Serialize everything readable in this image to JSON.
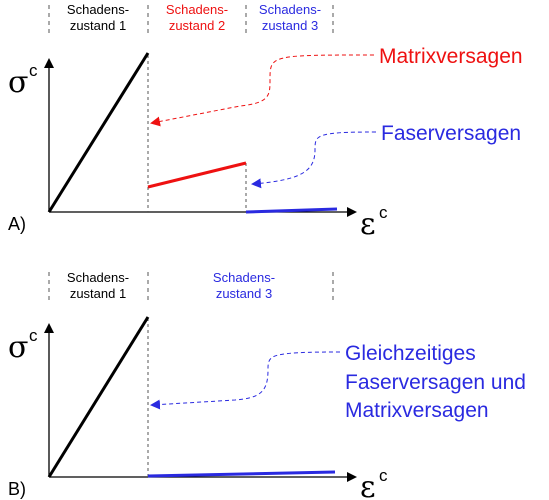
{
  "colors": {
    "black": "#000000",
    "red": "#ee1111",
    "blue": "#2a2ae0",
    "grey": "#555555"
  },
  "diagram_a": {
    "label": "A)",
    "y_axis": "σ",
    "y_sup": "c",
    "x_axis": "ε",
    "x_sup": "c",
    "zones": [
      {
        "line1": "Schadens-",
        "line2": "zustand 1",
        "color": "#000000"
      },
      {
        "line1": "Schadens-",
        "line2": "zustand 2",
        "color": "#ee1111"
      },
      {
        "line1": "Schadens-",
        "line2": "zustand 3",
        "color": "#2a2ae0"
      }
    ],
    "annotations": [
      {
        "text": "Matrixversagen",
        "color": "#ee1111"
      },
      {
        "text": "Faserversagen",
        "color": "#2a2ae0"
      }
    ]
  },
  "diagram_b": {
    "label": "B)",
    "y_axis": "σ",
    "y_sup": "c",
    "x_axis": "ε",
    "x_sup": "c",
    "zones": [
      {
        "line1": "Schadens-",
        "line2": "zustand 1",
        "color": "#000000"
      },
      {
        "line1": "Schadens-",
        "line2": "zustand 3",
        "color": "#2a2ae0"
      }
    ],
    "annotation_lines": [
      "Gleichzeitiges",
      "Faserversagen und",
      "Matrixversagen"
    ],
    "annotation_color": "#2a2ae0"
  }
}
